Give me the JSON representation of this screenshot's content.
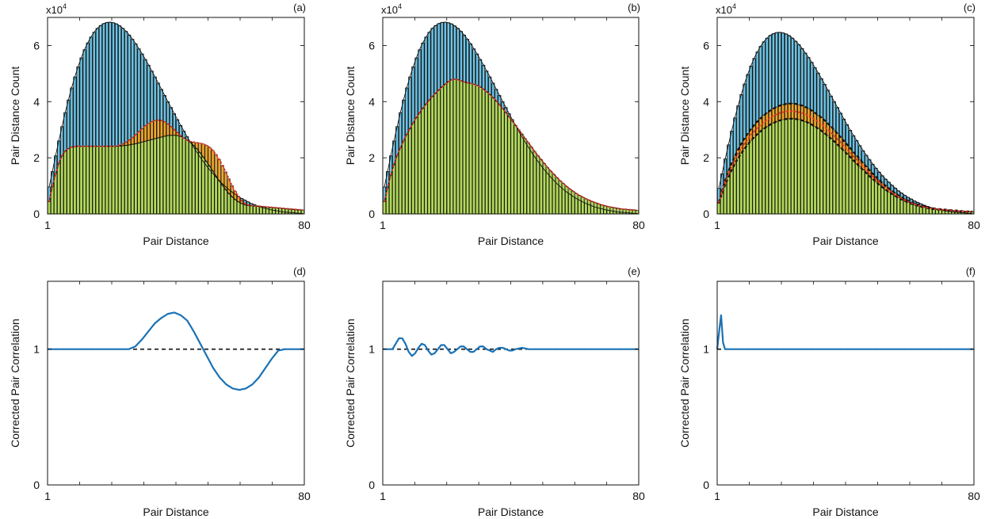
{
  "colors": {
    "blue_bar": "#6cc4e6",
    "green_bar": "#b2d95a",
    "orange_bar": "#f0a72a",
    "red_line": "#e0322a",
    "blue_line": "#1a72b5",
    "black": "#111111"
  },
  "chart_data": [
    {
      "type": "bar",
      "panel": "(a)",
      "xlabel": "Pair Distance",
      "ylabel": "Pair Distance Count",
      "exponent": "x10",
      "exponent_power": "4",
      "xlim": [
        1,
        80
      ],
      "ylim": [
        0,
        7
      ],
      "x_ticks": [
        "1",
        "80"
      ],
      "y_ticks": [
        "0",
        "2",
        "4",
        "6"
      ],
      "x": "integers 1..80",
      "series": [
        {
          "role": "blue",
          "values": [
            0.96,
            1.51,
            2.07,
            2.6,
            3.11,
            3.61,
            4.06,
            4.49,
            4.88,
            5.24,
            5.56,
            5.85,
            6.09,
            6.3,
            6.47,
            6.61,
            6.71,
            6.78,
            6.82,
            6.83,
            6.81,
            6.77,
            6.7,
            6.61,
            6.5,
            6.37,
            6.22,
            6.06,
            5.88,
            5.7,
            5.5,
            5.3,
            5.09,
            4.88,
            4.66,
            4.44,
            4.22,
            4.0,
            3.79,
            3.57,
            3.36,
            3.15,
            2.95,
            2.75,
            2.56,
            2.38,
            2.2,
            2.03,
            1.87,
            1.72,
            1.57,
            1.44,
            1.31,
            1.19,
            1.07,
            0.97,
            0.87,
            0.78,
            0.7,
            0.62,
            0.55,
            0.49,
            0.43,
            0.37,
            0.33,
            0.28,
            0.24,
            0.21,
            0.18,
            0.15,
            0.13,
            0.11,
            0.09,
            0.07,
            0.06,
            0.05,
            0.04,
            0.03,
            0.02,
            0.02
          ]
        },
        {
          "role": "orange",
          "values": [
            0.43,
            0.98,
            1.43,
            1.8,
            2.07,
            2.24,
            2.33,
            2.38,
            2.4,
            2.41,
            2.41,
            2.41,
            2.41,
            2.41,
            2.41,
            2.41,
            2.41,
            2.41,
            2.41,
            2.41,
            2.41,
            2.42,
            2.45,
            2.5,
            2.56,
            2.64,
            2.73,
            2.83,
            2.94,
            3.04,
            3.14,
            3.22,
            3.29,
            3.33,
            3.34,
            3.33,
            3.28,
            3.21,
            3.11,
            3.0,
            2.89,
            2.78,
            2.69,
            2.62,
            2.58,
            2.56,
            2.54,
            2.52,
            2.49,
            2.44,
            2.37,
            2.26,
            2.12,
            1.94,
            1.73,
            1.5,
            1.25,
            1.01,
            0.8,
            0.62,
            0.47,
            0.38,
            0.32,
            0.3,
            0.29,
            0.28,
            0.27,
            0.26,
            0.25,
            0.24,
            0.23,
            0.22,
            0.21,
            0.2,
            0.19,
            0.18,
            0.17,
            0.16,
            0.15,
            0.14
          ]
        },
        {
          "role": "green",
          "values": [
            0.43,
            0.98,
            1.43,
            1.8,
            2.07,
            2.24,
            2.33,
            2.38,
            2.4,
            2.41,
            2.41,
            2.41,
            2.41,
            2.41,
            2.41,
            2.41,
            2.41,
            2.41,
            2.41,
            2.41,
            2.41,
            2.41,
            2.42,
            2.43,
            2.44,
            2.46,
            2.48,
            2.5,
            2.53,
            2.56,
            2.59,
            2.62,
            2.65,
            2.68,
            2.71,
            2.74,
            2.77,
            2.79,
            2.8,
            2.8,
            2.79,
            2.76,
            2.71,
            2.64,
            2.55,
            2.44,
            2.32,
            2.18,
            2.03,
            1.87,
            1.7,
            1.53,
            1.35,
            1.18,
            1.02,
            0.87,
            0.73,
            0.61,
            0.51,
            0.43,
            0.37,
            0.32,
            0.3,
            0.29,
            0.28,
            0.27,
            0.26,
            0.25,
            0.24,
            0.23,
            0.22,
            0.21,
            0.2,
            0.19,
            0.18,
            0.17,
            0.16,
            0.15,
            0.14,
            0.14
          ]
        }
      ]
    },
    {
      "type": "bar",
      "panel": "(b)",
      "xlabel": "Pair Distance",
      "ylabel": "Pair Distance Count",
      "exponent": "x10",
      "exponent_power": "4",
      "xlim": [
        1,
        80
      ],
      "ylim": [
        0,
        7
      ],
      "x_ticks": [
        "1",
        "80"
      ],
      "y_ticks": [
        "0",
        "2",
        "4",
        "6"
      ],
      "x": "integers 1..80",
      "series": [
        {
          "role": "blue",
          "values": [
            0.96,
            1.51,
            2.07,
            2.6,
            3.11,
            3.61,
            4.06,
            4.49,
            4.88,
            5.24,
            5.56,
            5.85,
            6.09,
            6.3,
            6.47,
            6.61,
            6.71,
            6.78,
            6.82,
            6.83,
            6.81,
            6.77,
            6.7,
            6.61,
            6.5,
            6.37,
            6.22,
            6.06,
            5.88,
            5.7,
            5.5,
            5.3,
            5.09,
            4.88,
            4.66,
            4.44,
            4.22,
            4.0,
            3.79,
            3.57,
            3.36,
            3.15,
            2.95,
            2.75,
            2.56,
            2.38,
            2.2,
            2.03,
            1.87,
            1.72,
            1.57,
            1.44,
            1.31,
            1.19,
            1.07,
            0.97,
            0.87,
            0.78,
            0.7,
            0.62,
            0.55,
            0.49,
            0.43,
            0.37,
            0.33,
            0.28,
            0.24,
            0.21,
            0.18,
            0.15,
            0.13,
            0.11,
            0.09,
            0.07,
            0.06,
            0.05,
            0.04,
            0.03,
            0.02,
            0.02
          ]
        },
        {
          "role": "green",
          "values": [
            0.43,
            0.93,
            1.38,
            1.76,
            2.08,
            2.35,
            2.6,
            2.83,
            3.04,
            3.24,
            3.43,
            3.6,
            3.76,
            3.91,
            4.05,
            4.18,
            4.3,
            4.41,
            4.52,
            4.62,
            4.71,
            4.78,
            4.8,
            4.78,
            4.74,
            4.7,
            4.67,
            4.65,
            4.62,
            4.58,
            4.52,
            4.44,
            4.35,
            4.25,
            4.14,
            4.02,
            3.89,
            3.75,
            3.61,
            3.46,
            3.31,
            3.16,
            3.0,
            2.85,
            2.69,
            2.54,
            2.38,
            2.23,
            2.08,
            1.94,
            1.8,
            1.66,
            1.53,
            1.41,
            1.29,
            1.18,
            1.08,
            0.98,
            0.89,
            0.81,
            0.73,
            0.66,
            0.6,
            0.54,
            0.49,
            0.44,
            0.4,
            0.36,
            0.32,
            0.29,
            0.26,
            0.24,
            0.22,
            0.2,
            0.18,
            0.17,
            0.16,
            0.15,
            0.14,
            0.13
          ]
        }
      ]
    },
    {
      "type": "bar",
      "panel": "(c)",
      "xlabel": "Pair Distance",
      "ylabel": "Pair Distance Count",
      "exponent": "x10",
      "exponent_power": "4",
      "xlim": [
        1,
        80
      ],
      "ylim": [
        0,
        7
      ],
      "x_ticks": [
        "1",
        "80"
      ],
      "y_ticks": [
        "0",
        "2",
        "4",
        "6"
      ],
      "x": "integers 1..80",
      "series": [
        {
          "role": "blue",
          "values": [
            0.91,
            1.43,
            1.96,
            2.46,
            2.95,
            3.42,
            3.85,
            4.25,
            4.63,
            4.97,
            5.27,
            5.54,
            5.77,
            5.97,
            6.13,
            6.26,
            6.36,
            6.42,
            6.46,
            6.47,
            6.45,
            6.41,
            6.35,
            6.26,
            6.15,
            6.03,
            5.89,
            5.73,
            5.57,
            5.4,
            5.21,
            5.02,
            4.82,
            4.62,
            4.41,
            4.2,
            4.0,
            3.79,
            3.59,
            3.38,
            3.18,
            2.98,
            2.79,
            2.61,
            2.43,
            2.25,
            2.09,
            1.93,
            1.77,
            1.63,
            1.49,
            1.36,
            1.24,
            1.13,
            1.02,
            0.92,
            0.82,
            0.74,
            0.66,
            0.59,
            0.53,
            0.46,
            0.41,
            0.36,
            0.31,
            0.27,
            0.23,
            0.2,
            0.17,
            0.15,
            0.12,
            0.1,
            0.09,
            0.07,
            0.06,
            0.05,
            0.04,
            0.03,
            0.02,
            0.02
          ]
        },
        {
          "role": "green",
          "values": [
            0.38,
            0.72,
            1.04,
            1.31,
            1.56,
            1.78,
            1.98,
            2.16,
            2.32,
            2.47,
            2.61,
            2.73,
            2.84,
            2.94,
            3.03,
            3.11,
            3.18,
            3.24,
            3.29,
            3.33,
            3.36,
            3.38,
            3.39,
            3.39,
            3.38,
            3.36,
            3.33,
            3.29,
            3.24,
            3.18,
            3.11,
            3.04,
            2.96,
            2.87,
            2.78,
            2.68,
            2.58,
            2.47,
            2.36,
            2.25,
            2.13,
            2.02,
            1.9,
            1.79,
            1.67,
            1.56,
            1.45,
            1.34,
            1.24,
            1.14,
            1.04,
            0.95,
            0.86,
            0.78,
            0.71,
            0.64,
            0.57,
            0.51,
            0.46,
            0.41,
            0.36,
            0.32,
            0.29,
            0.26,
            0.23,
            0.21,
            0.19,
            0.17,
            0.16,
            0.15,
            0.14,
            0.13,
            0.12,
            0.11,
            0.1,
            0.09,
            0.09,
            0.08,
            0.08,
            0.08
          ]
        },
        {
          "role": "orange-top",
          "values": [
            0.41,
            0.83,
            1.2,
            1.52,
            1.81,
            2.06,
            2.29,
            2.5,
            2.69,
            2.86,
            3.02,
            3.16,
            3.29,
            3.4,
            3.51,
            3.6,
            3.68,
            3.75,
            3.81,
            3.86,
            3.89,
            3.92,
            3.93,
            3.93,
            3.92,
            3.89,
            3.86,
            3.81,
            3.75,
            3.68,
            3.6,
            3.52,
            3.43,
            3.33,
            3.22,
            3.11,
            2.99,
            2.86,
            2.73,
            2.6,
            2.47,
            2.34,
            2.2,
            2.07,
            1.94,
            1.81,
            1.68,
            1.55,
            1.43,
            1.32,
            1.21,
            1.1,
            1.0,
            0.91,
            0.82,
            0.74,
            0.66,
            0.59,
            0.53,
            0.47,
            0.42,
            0.37,
            0.33,
            0.3,
            0.27,
            0.24,
            0.22,
            0.2,
            0.18,
            0.17,
            0.16,
            0.15,
            0.14,
            0.13,
            0.12,
            0.11,
            0.1,
            0.09,
            0.09,
            0.09
          ]
        }
      ]
    },
    {
      "type": "line",
      "panel": "(d)",
      "xlabel": "Pair Distance",
      "ylabel": "Corrected Pair Correlation",
      "xlim": [
        1,
        80
      ],
      "ylim": [
        0,
        1.5
      ],
      "x_ticks": [
        "1",
        "80"
      ],
      "y_ticks": [
        "0",
        "1"
      ],
      "reference_line": 1,
      "x": [
        1,
        26,
        28,
        30,
        32,
        34,
        36,
        38,
        40,
        42,
        44,
        46,
        48,
        50,
        52,
        54,
        56,
        58,
        60,
        62,
        64,
        66,
        68,
        70,
        72,
        74,
        76,
        78,
        80
      ],
      "values": [
        1,
        1,
        1.02,
        1.07,
        1.13,
        1.19,
        1.23,
        1.26,
        1.27,
        1.25,
        1.21,
        1.13,
        1.04,
        0.95,
        0.86,
        0.79,
        0.74,
        0.71,
        0.7,
        0.71,
        0.74,
        0.79,
        0.86,
        0.93,
        0.99,
        1.0,
        1.0,
        1.0,
        1.0
      ]
    },
    {
      "type": "line",
      "panel": "(e)",
      "xlabel": "Pair Distance",
      "ylabel": "Corrected Pair Correlation",
      "xlim": [
        1,
        80
      ],
      "ylim": [
        0,
        1.5
      ],
      "x_ticks": [
        "1",
        "80"
      ],
      "y_ticks": [
        "0",
        "1"
      ],
      "reference_line": 1,
      "x": [
        1,
        4,
        5,
        6,
        7,
        8,
        9,
        10,
        11,
        12,
        13,
        14,
        15,
        16,
        17,
        18,
        19,
        20,
        21,
        22,
        23,
        24,
        25,
        26,
        27,
        28,
        29,
        30,
        31,
        32,
        33,
        34,
        35,
        36,
        37,
        38,
        39,
        40,
        41,
        42,
        44,
        46,
        48,
        50,
        55,
        60,
        70,
        80
      ],
      "values": [
        1.0,
        1.0,
        1.04,
        1.08,
        1.08,
        1.04,
        0.98,
        0.95,
        0.97,
        1.01,
        1.04,
        1.03,
        0.99,
        0.96,
        0.97,
        1.0,
        1.03,
        1.03,
        1.0,
        0.97,
        0.98,
        1.0,
        1.02,
        1.02,
        1.0,
        0.98,
        0.98,
        1.0,
        1.02,
        1.02,
        1.0,
        0.99,
        0.98,
        1.0,
        1.01,
        1.01,
        1.0,
        0.99,
        0.99,
        1.0,
        1.01,
        1.0,
        1.0,
        1.0,
        1.0,
        1.0,
        1.0,
        1.0
      ]
    },
    {
      "type": "line",
      "panel": "(f)",
      "xlabel": "Pair Distance",
      "ylabel": "Corrected Pair Correlation",
      "xlim": [
        1,
        80
      ],
      "ylim": [
        0,
        1.5
      ],
      "x_ticks": [
        "1",
        "80"
      ],
      "y_ticks": [
        "0",
        "1"
      ],
      "reference_line": 1,
      "x": [
        1,
        1.6,
        2.2,
        2.8,
        3.4,
        80
      ],
      "values": [
        1.0,
        1.13,
        1.25,
        1.05,
        1.0,
        1.0
      ]
    }
  ]
}
